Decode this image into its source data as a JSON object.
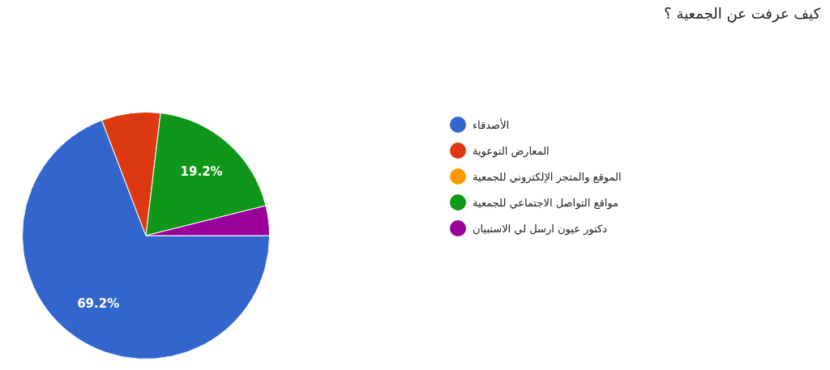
{
  "chart_data": {
    "type": "pie",
    "title": "كيف عرفت عن الجمعية ؟",
    "categories": [
      "الأصدقاء",
      "المعارض التوعوية",
      "الموقع والمتجر الإلكتروني للجمعية",
      "مواقع التواصل الاجتماعي للجمعية",
      "دكتور عيون ارسل لي الاستبيان"
    ],
    "values": [
      69.2,
      7.7,
      0,
      19.2,
      3.9
    ],
    "colors": [
      "#3366cc",
      "#dc3912",
      "#ff9900",
      "#109618",
      "#990099"
    ],
    "value_labels": [
      "69.2%",
      null,
      null,
      "19.2%",
      null
    ],
    "legend": "right"
  }
}
